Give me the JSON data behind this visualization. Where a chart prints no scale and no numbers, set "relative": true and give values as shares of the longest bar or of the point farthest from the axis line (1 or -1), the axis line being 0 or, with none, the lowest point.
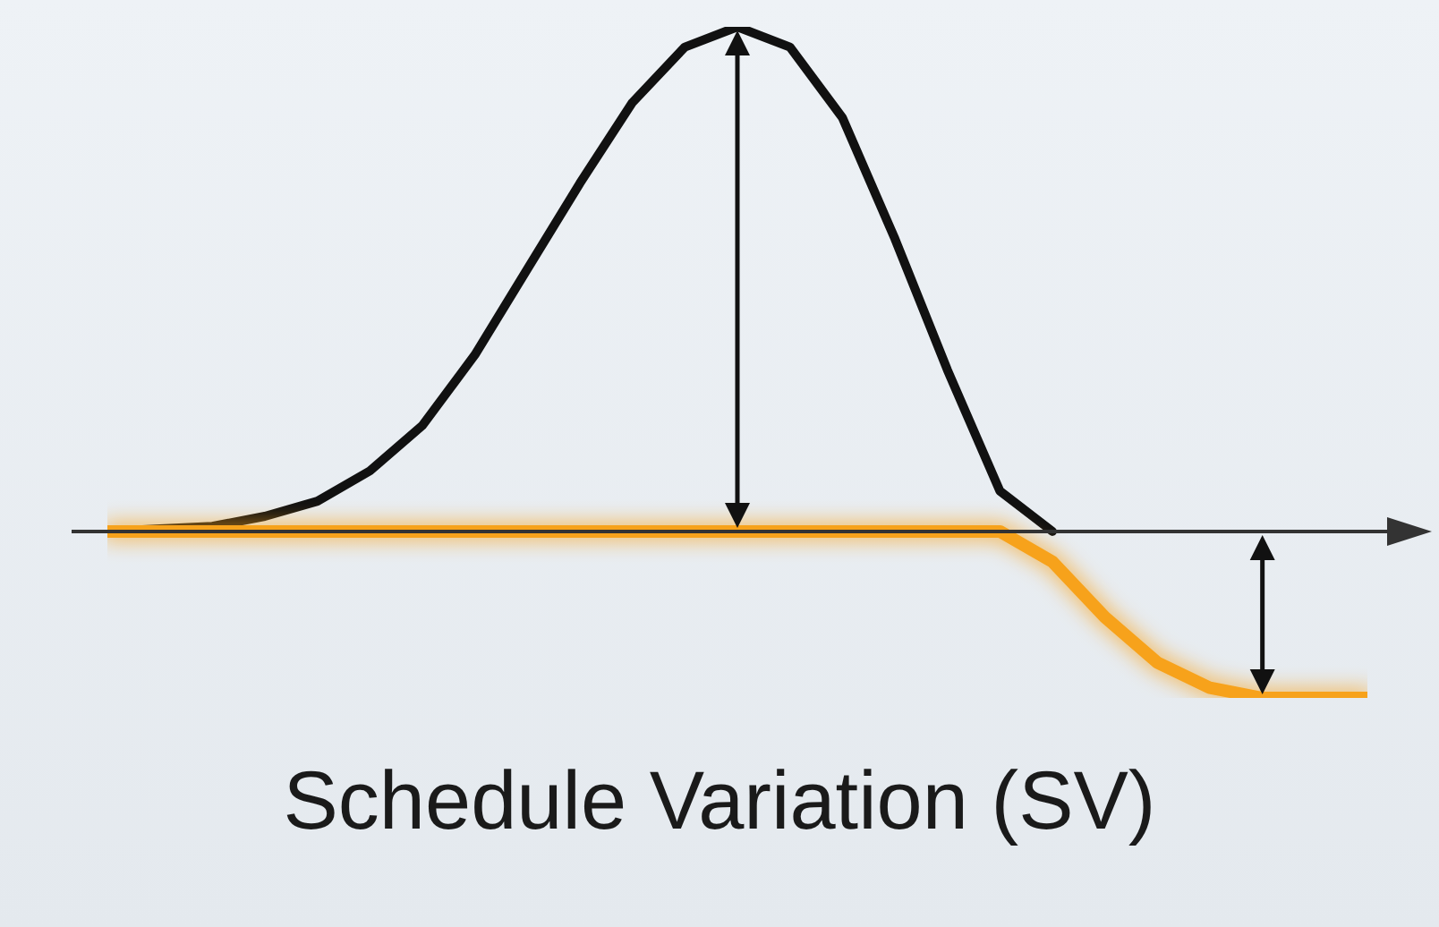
{
  "chart_data": {
    "type": "line",
    "title": "Schedule Variation (SV)",
    "relative": true,
    "categories": [
      null,
      null,
      null,
      null,
      null,
      null,
      null,
      null,
      null,
      null,
      null,
      null,
      null,
      null,
      null,
      null,
      null,
      null,
      null,
      null,
      null,
      null,
      null,
      null,
      null
    ],
    "series": [
      {
        "color": "#111111",
        "values": [
          0,
          0.005,
          0.01,
          0.03,
          0.06,
          0.12,
          0.21,
          0.35,
          0.52,
          0.69,
          0.85,
          0.96,
          1,
          0.96,
          0.82,
          0.58,
          0.32,
          0.08,
          0,
          null,
          null,
          null,
          null,
          null,
          null
        ]
      },
      {
        "color": "#f7a21b",
        "values": [
          0,
          0,
          0,
          0,
          0,
          0,
          0,
          0,
          0,
          0,
          0,
          0,
          0,
          0,
          0,
          0,
          0,
          0,
          -0.06,
          -0.17,
          -0.26,
          -0.31,
          -0.33,
          -0.33,
          -0.33
        ]
      }
    ]
  }
}
